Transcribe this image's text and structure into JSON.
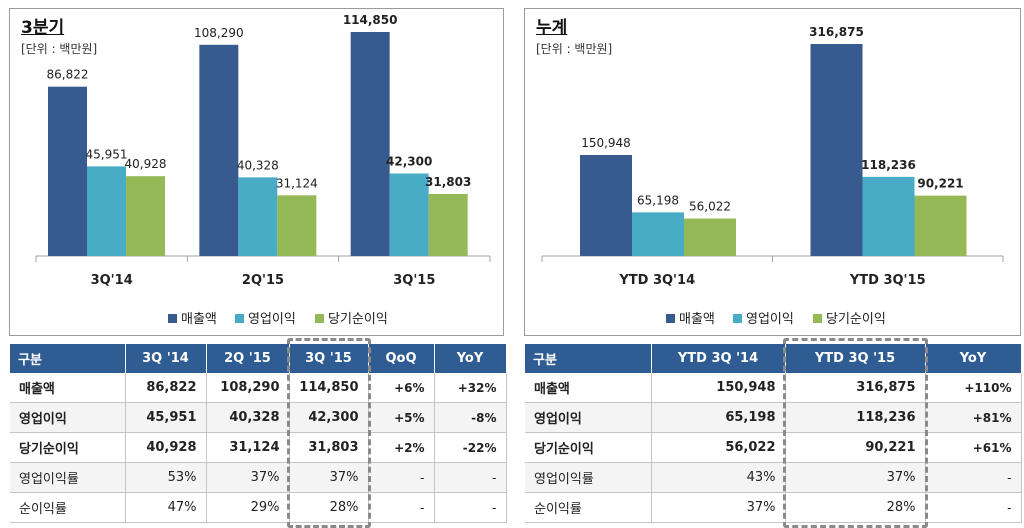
{
  "colors": {
    "sales": "#375b8f",
    "op": "#49acc6",
    "net": "#95b957",
    "header": "#2f5d93"
  },
  "left": {
    "title": "3분기",
    "unit": "[단위 : 백만원]",
    "legend": [
      "매출액",
      "영업이익",
      "당기순이익"
    ],
    "table": {
      "headers": [
        "구분",
        "3Q '14",
        "2Q '15",
        "3Q '15",
        "QoQ",
        "YoY"
      ],
      "rows": [
        [
          "매출액",
          "86,822",
          "108,290",
          "114,850",
          "+6%",
          "+32%"
        ],
        [
          "영업이익",
          "45,951",
          "40,328",
          "42,300",
          "+5%",
          "-8%"
        ],
        [
          "당기순이익",
          "40,928",
          "31,124",
          "31,803",
          "+2%",
          "-22%"
        ],
        [
          "영업이익률",
          "53%",
          "37%",
          "37%",
          "-",
          "-"
        ],
        [
          "순이익률",
          "47%",
          "29%",
          "28%",
          "-",
          "-"
        ]
      ]
    }
  },
  "right": {
    "title": "누계",
    "unit": "[단위 : 백만원]",
    "legend": [
      "매출액",
      "영업이익",
      "당기순이익"
    ],
    "table": {
      "headers": [
        "구분",
        "YTD 3Q '14",
        "YTD 3Q '15",
        "YoY"
      ],
      "rows": [
        [
          "매출액",
          "150,948",
          "316,875",
          "+110%"
        ],
        [
          "영업이익",
          "65,198",
          "118,236",
          "+81%"
        ],
        [
          "당기순이익",
          "56,022",
          "90,221",
          "+61%"
        ],
        [
          "영업이익률",
          "43%",
          "37%",
          "-"
        ],
        [
          "순이익률",
          "37%",
          "28%",
          "-"
        ]
      ]
    }
  },
  "chart_data": [
    {
      "type": "bar",
      "title": "3분기",
      "categories": [
        "3Q'14",
        "2Q'15",
        "3Q'15"
      ],
      "series": [
        {
          "name": "매출액",
          "values": [
            86822,
            108290,
            114850
          ],
          "labels": [
            "86,822",
            "108,290",
            "114,850"
          ]
        },
        {
          "name": "영업이익",
          "values": [
            45951,
            40328,
            42300
          ],
          "labels": [
            "45,951",
            "40,328",
            "42,300"
          ]
        },
        {
          "name": "당기순이익",
          "values": [
            40928,
            31124,
            31803
          ],
          "labels": [
            "40,928",
            "31,124",
            "31,803"
          ]
        }
      ],
      "bold_category": 2,
      "grid": false,
      "legend_position": "bottom"
    },
    {
      "type": "bar",
      "title": "누계",
      "categories": [
        "YTD 3Q'14",
        "YTD 3Q'15"
      ],
      "series": [
        {
          "name": "매출액",
          "values": [
            150948,
            316875
          ],
          "labels": [
            "150,948",
            "316,875"
          ]
        },
        {
          "name": "영업이익",
          "values": [
            65198,
            118236
          ],
          "labels": [
            "65,198",
            "118,236"
          ]
        },
        {
          "name": "당기순이익",
          "values": [
            56022,
            90221
          ],
          "labels": [
            "56,022",
            "90,221"
          ]
        }
      ],
      "bold_category": 1,
      "grid": false,
      "legend_position": "bottom"
    }
  ]
}
